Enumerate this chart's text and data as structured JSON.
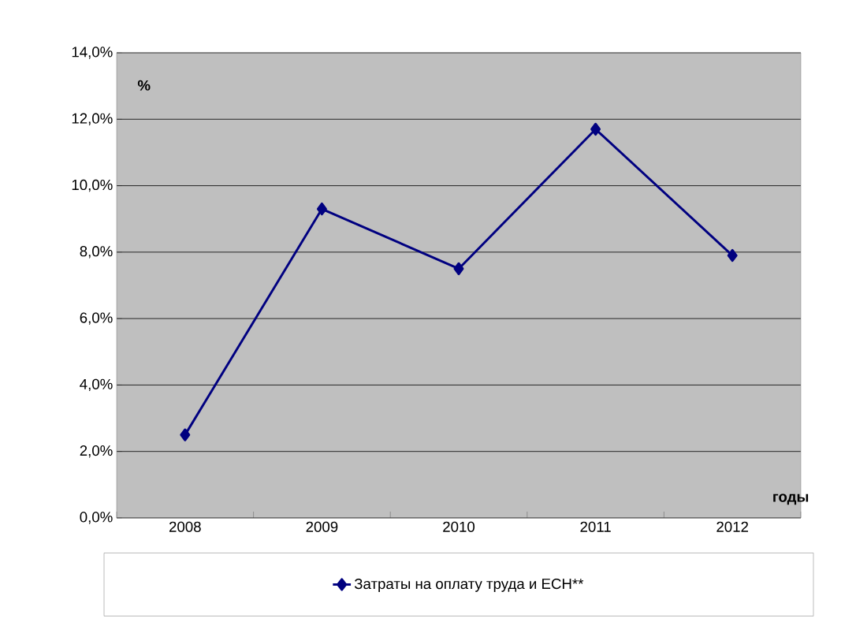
{
  "chart_data": {
    "type": "line",
    "xlabel": "годы",
    "ylabel": "%",
    "categories": [
      "2008",
      "2009",
      "2010",
      "2011",
      "2012"
    ],
    "series": [
      {
        "name": "Затраты на оплату труда и ЕСН**",
        "color": "#000080",
        "values": [
          2.5,
          9.3,
          7.5,
          11.7,
          7.9
        ]
      }
    ],
    "ylim": [
      0,
      14
    ],
    "yticks": [
      {
        "value": 0,
        "label": "0,0%"
      },
      {
        "value": 2,
        "label": "2,0%"
      },
      {
        "value": 4,
        "label": "4,0%"
      },
      {
        "value": 6,
        "label": "6,0%"
      },
      {
        "value": 8,
        "label": "8,0%"
      },
      {
        "value": 10,
        "label": "10,0%"
      },
      {
        "value": 12,
        "label": "12,0%"
      },
      {
        "value": 14,
        "label": "14,0%"
      }
    ],
    "grid": "y",
    "legend": "bottom",
    "marker": "diamond",
    "line_style": "solid"
  }
}
